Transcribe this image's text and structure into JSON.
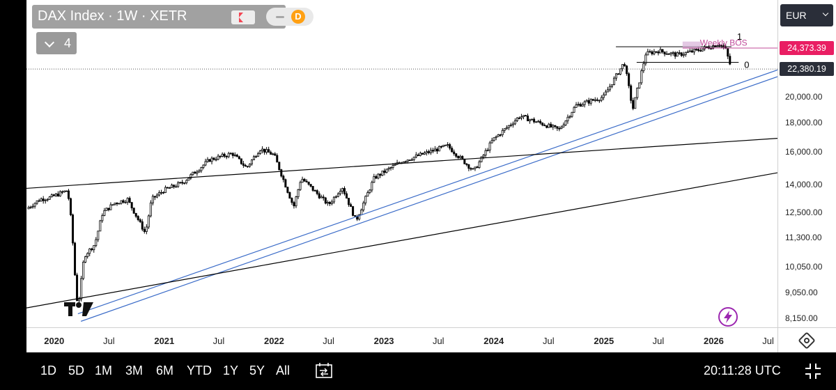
{
  "header": {
    "title": "DAX Index · 1W · XETR",
    "badge_letter": "D",
    "collapse_count": "4",
    "currency": "EUR"
  },
  "bottom_bar": {
    "ranges": [
      "1D",
      "5D",
      "1M",
      "3M",
      "6M",
      "YTD",
      "1Y",
      "5Y",
      "All"
    ],
    "clock": "20:11:28 UTC"
  },
  "colors": {
    "candle": "#000000",
    "trendline_blue": "#3a6bc8",
    "trendline_black": "#000000",
    "bos_label": "#c04b9a",
    "last_price_tag": "#e91e63",
    "close_tag": "#2a2e39"
  },
  "icons": {
    "flag": "flag-icon",
    "minus": "minus-icon",
    "chevron": "chevron-down-icon",
    "settings": "settings-icon",
    "replay": "replay-icon",
    "fullscreen": "fullscreen-icon",
    "flash": "flash-icon",
    "logo": "tradingview-logo"
  },
  "chart_data": {
    "type": "candlestick",
    "symbol": "DAX Index",
    "interval": "1W",
    "exchange": "XETR",
    "price_scale": "log",
    "y_ticks": [
      "20,000.00",
      "18,000.00",
      "16,000.00",
      "14,000.00",
      "12,500.00",
      "11,300.00",
      "10,050.00",
      "9,050.00",
      "8,150.00"
    ],
    "x_ticks": [
      {
        "label": "2020",
        "year": true
      },
      {
        "label": "Jul",
        "year": false
      },
      {
        "label": "2021",
        "year": true
      },
      {
        "label": "Jul",
        "year": false
      },
      {
        "label": "2022",
        "year": true
      },
      {
        "label": "Jul",
        "year": false
      },
      {
        "label": "2023",
        "year": true
      },
      {
        "label": "Jul",
        "year": false
      },
      {
        "label": "2024",
        "year": true
      },
      {
        "label": "Jul",
        "year": false
      },
      {
        "label": "2025",
        "year": true
      },
      {
        "label": "Jul",
        "year": false
      },
      {
        "label": "2026",
        "year": true
      },
      {
        "label": "Jul",
        "year": false
      }
    ],
    "x_range": [
      "2019-10",
      "2026-08"
    ],
    "y_range": [
      7900,
      26000
    ],
    "price_path": [
      [
        "2019-10-01",
        12700
      ],
      [
        "2019-11-15",
        13200
      ],
      [
        "2019-12-20",
        13300
      ],
      [
        "2020-02-15",
        13700
      ],
      [
        "2020-02-28",
        11900
      ],
      [
        "2020-03-13",
        9200
      ],
      [
        "2020-03-20",
        8500
      ],
      [
        "2020-04-10",
        10500
      ],
      [
        "2020-05-15",
        11000
      ],
      [
        "2020-06-10",
        12500
      ],
      [
        "2020-07-20",
        13000
      ],
      [
        "2020-09-01",
        13200
      ],
      [
        "2020-10-30",
        11500
      ],
      [
        "2020-11-20",
        13200
      ],
      [
        "2020-12-31",
        13700
      ],
      [
        "2021-03-01",
        14100
      ],
      [
        "2021-06-01",
        15500
      ],
      [
        "2021-08-15",
        15900
      ],
      [
        "2021-10-01",
        15000
      ],
      [
        "2021-11-15",
        16200
      ],
      [
        "2022-01-01",
        15800
      ],
      [
        "2022-03-07",
        12800
      ],
      [
        "2022-04-01",
        14400
      ],
      [
        "2022-07-01",
        12900
      ],
      [
        "2022-08-15",
        13900
      ],
      [
        "2022-09-30",
        12100
      ],
      [
        "2022-11-30",
        14400
      ],
      [
        "2023-03-01",
        15400
      ],
      [
        "2023-07-31",
        16400
      ],
      [
        "2023-10-27",
        14800
      ],
      [
        "2023-12-29",
        16800
      ],
      [
        "2024-03-28",
        18500
      ],
      [
        "2024-08-05",
        17500
      ],
      [
        "2024-09-30",
        19300
      ],
      [
        "2024-12-31",
        20000
      ],
      [
        "2025-03-10",
        23000
      ],
      [
        "2025-04-07",
        19000
      ],
      [
        "2025-05-20",
        23800
      ],
      [
        "2025-07-01",
        24100
      ],
      [
        "2025-09-01",
        23700
      ],
      [
        "2025-11-01",
        24100
      ],
      [
        "2025-12-20",
        24500
      ],
      [
        "2026-01-20",
        24800
      ],
      [
        "2026-02-10",
        24200
      ],
      [
        "2026-03-01",
        22380
      ]
    ],
    "trendlines": [
      {
        "color": "blue",
        "from": [
          "2020-03-20",
          8300
        ],
        "to": [
          "2026-08-01",
          22300
        ]
      },
      {
        "color": "blue",
        "from": [
          "2020-03-30",
          8050
        ],
        "to": [
          "2026-08-01",
          21700
        ]
      },
      {
        "color": "black",
        "from": [
          "2019-10-01",
          13800
        ],
        "to": [
          "2026-08-01",
          16900
        ]
      },
      {
        "color": "black",
        "from": [
          "2019-10-01",
          8500
        ],
        "to": [
          "2026-08-01",
          14700
        ]
      }
    ],
    "levels": [
      {
        "label": "1",
        "value": 24500,
        "from": "2025-02-10",
        "to": "2026-03-01"
      },
      {
        "label": "0",
        "value": 23000,
        "from": "2025-04-20",
        "to": "2026-03-25"
      }
    ],
    "annotations": [
      {
        "text": "Weekly BOS",
        "at": [
          "2026-01-25",
          24600
        ]
      }
    ],
    "last_price": {
      "label": "24,373.39",
      "value": 24373.39
    },
    "close_price": {
      "label": "22,380.19",
      "value": 22380.19
    }
  }
}
